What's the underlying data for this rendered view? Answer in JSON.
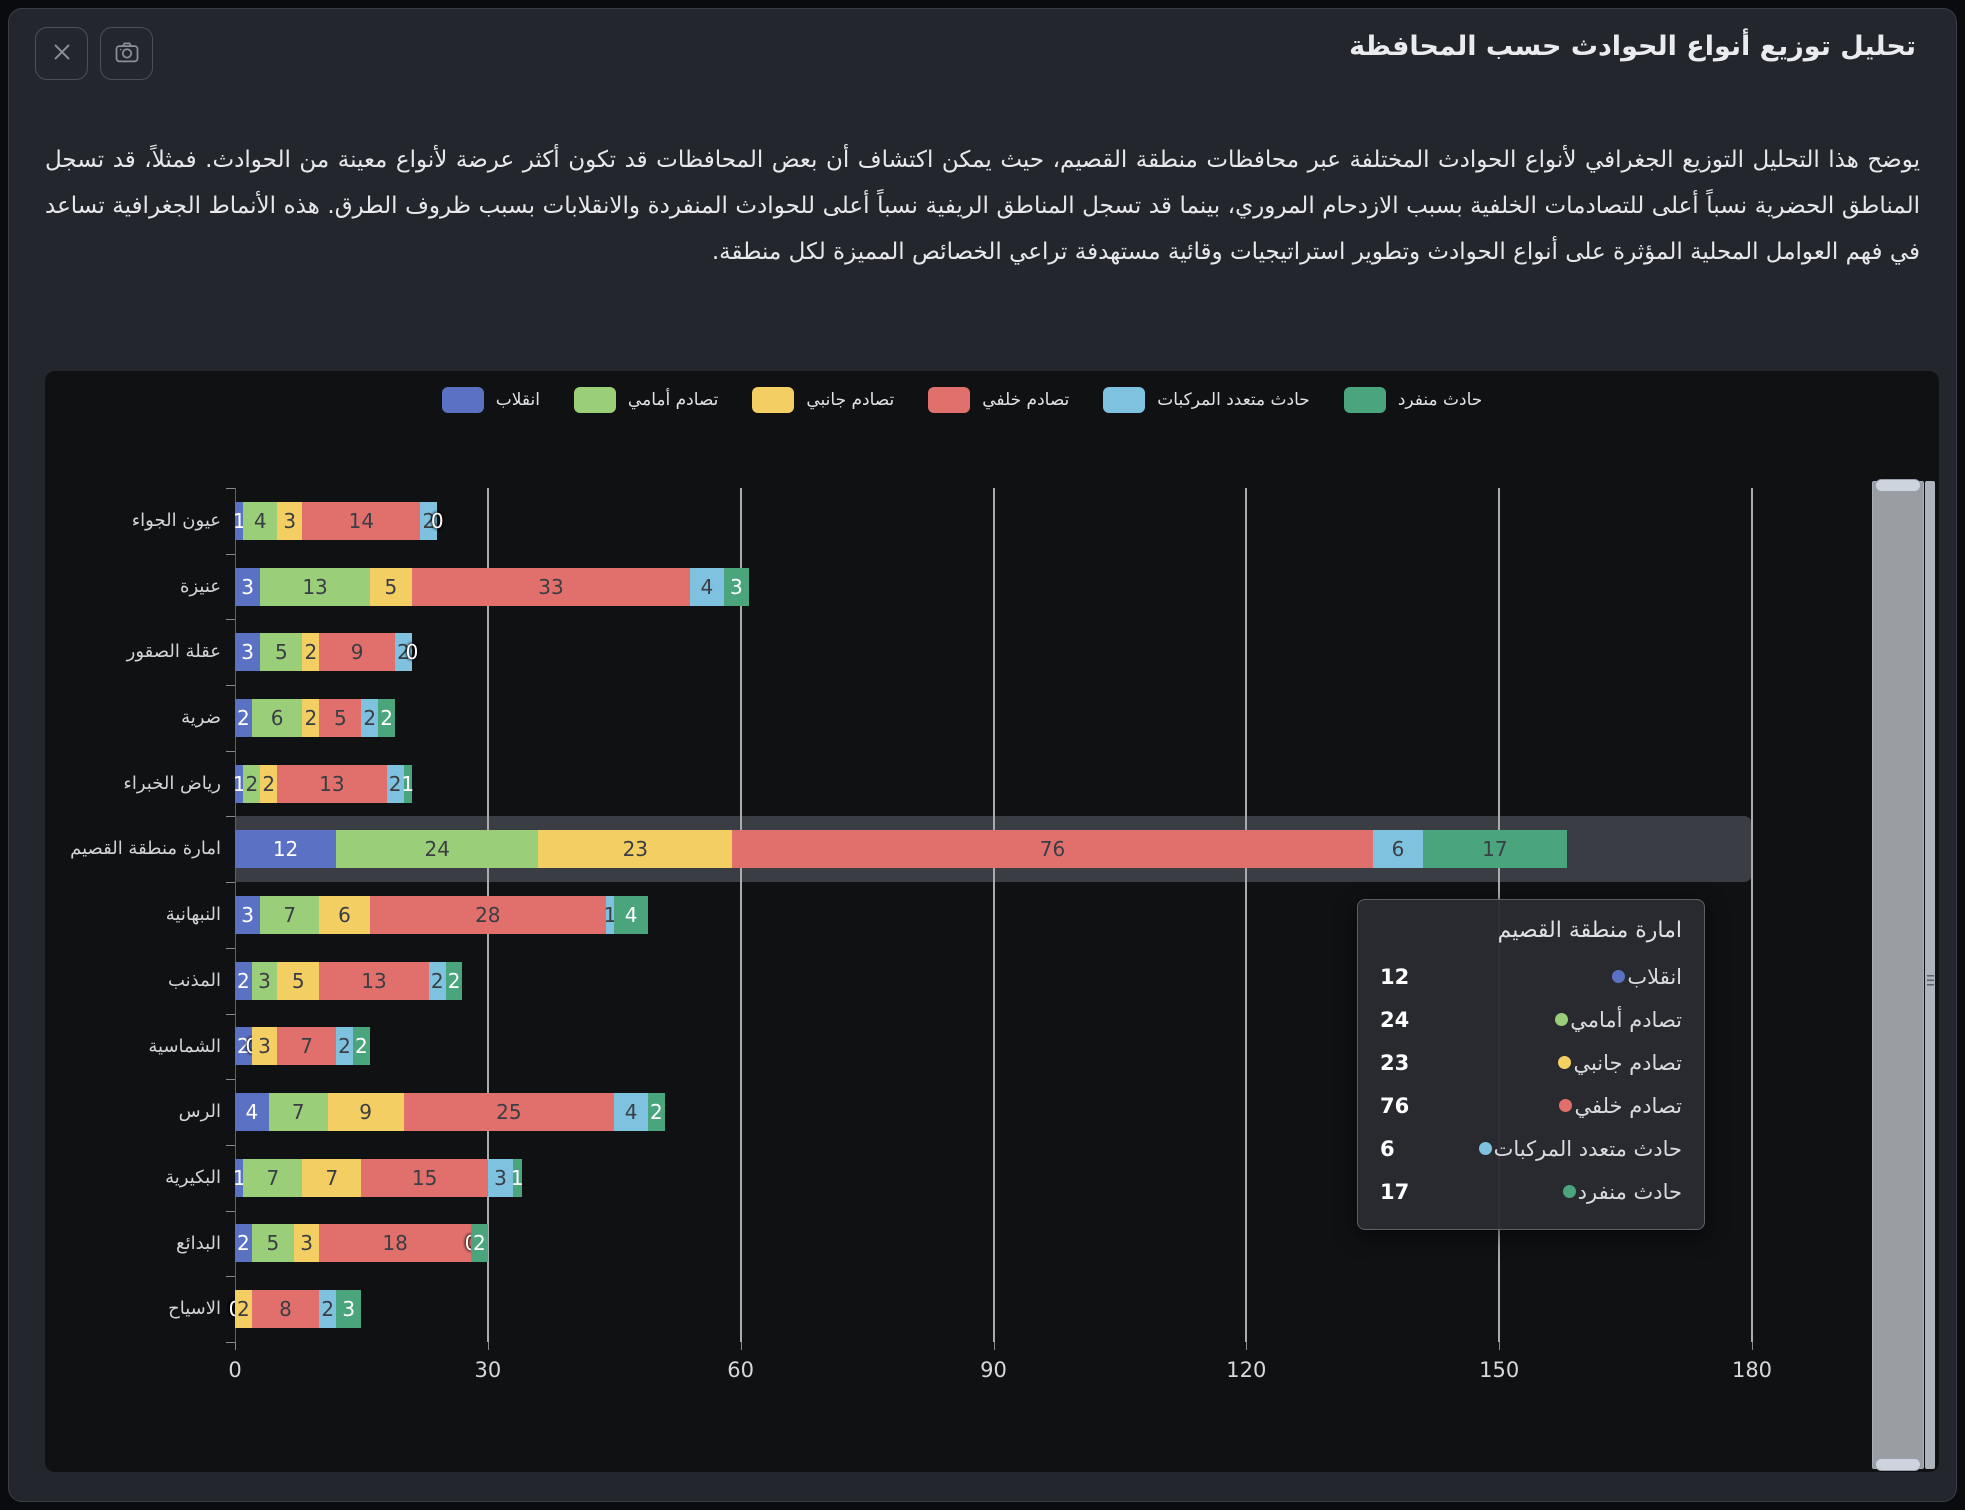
{
  "dialog": {
    "title": "تحليل توزيع أنواع الحوادث حسب المحافظة",
    "description": "يوضح هذا التحليل التوزيع الجغرافي لأنواع الحوادث المختلفة عبر محافظات منطقة القصيم، حيث يمكن اكتشاف أن بعض المحافظات قد تكون أكثر عرضة لأنواع معينة من الحوادث. فمثلاً، قد تسجل المناطق الحضرية نسباً أعلى للتصادمات الخلفية بسبب الازدحام المروري، بينما قد تسجل المناطق الريفية نسباً أعلى للحوادث المنفردة والانقلابات بسبب ظروف الطرق. هذه الأنماط الجغرافية تساعد في فهم العوامل المحلية المؤثرة على أنواع الحوادث وتطوير استراتيجيات وقائية مستهدفة تراعي الخصائص المميزة لكل منطقة.",
    "buttons": {
      "close": "close-x",
      "screenshot": "camera"
    }
  },
  "chart_data": {
    "type": "bar",
    "orientation": "horizontal",
    "stacked": true,
    "grid": true,
    "legend_position": "top",
    "xlabel": "",
    "ylabel": "",
    "xlim": [
      0,
      180
    ],
    "xticks": [
      0,
      30,
      60,
      90,
      120,
      150,
      180
    ],
    "categories": [
      "عيون الجواء",
      "عنيزة",
      "عقلة الصقور",
      "ضرية",
      "رياض الخبراء",
      "امارة منطقة القصيم",
      "النبهانية",
      "المذنب",
      "الشماسية",
      "الرس",
      "البكيرية",
      "البدائع",
      "الاسياح"
    ],
    "highlighted_category_index": 5,
    "series": [
      {
        "name": "انقلاب",
        "color": "#5b72c4",
        "label_color": "#ffffff",
        "values": [
          1,
          3,
          3,
          2,
          1,
          12,
          3,
          2,
          2,
          4,
          1,
          2,
          0
        ]
      },
      {
        "name": "تصادم أمامي",
        "color": "#9bce78",
        "label_color": "#3a3e44",
        "values": [
          4,
          13,
          5,
          6,
          2,
          24,
          7,
          3,
          0,
          7,
          7,
          5,
          0
        ]
      },
      {
        "name": "تصادم جانبي",
        "color": "#f3ce62",
        "label_color": "#3a3e44",
        "values": [
          3,
          5,
          2,
          2,
          2,
          23,
          6,
          5,
          3,
          9,
          7,
          3,
          2
        ]
      },
      {
        "name": "تصادم خلفي",
        "color": "#e1706c",
        "label_color": "#3a3e44",
        "values": [
          14,
          33,
          9,
          5,
          13,
          76,
          28,
          13,
          7,
          25,
          15,
          18,
          8
        ]
      },
      {
        "name": "حادث متعدد المركبات",
        "color": "#7fc2e0",
        "label_color": "#3a3e44",
        "values": [
          2,
          4,
          2,
          2,
          2,
          6,
          1,
          2,
          2,
          4,
          3,
          0,
          2
        ]
      },
      {
        "name": "حادث منفرد",
        "color": "#4aa57d",
        "label_color": "#ffffff",
        "label_color_highlighted": "#3a3e44",
        "values": [
          0,
          3,
          0,
          2,
          1,
          17,
          4,
          2,
          2,
          2,
          1,
          2,
          3
        ]
      }
    ]
  },
  "tooltip": {
    "title": "امارة منطقة القصيم",
    "items": [
      {
        "label": "انقلاب",
        "value": 12,
        "color": "#5b72c4"
      },
      {
        "label": "تصادم أمامي",
        "value": 24,
        "color": "#9bce78"
      },
      {
        "label": "تصادم جانبي",
        "value": 23,
        "color": "#f3ce62"
      },
      {
        "label": "تصادم خلفي",
        "value": 76,
        "color": "#e1706c"
      },
      {
        "label": "حادث متعدد المركبات",
        "value": 6,
        "color": "#7fc2e0"
      },
      {
        "label": "حادث منفرد",
        "value": 17,
        "color": "#4aa57d"
      }
    ]
  },
  "colors": {
    "page_bg": "#0a0b0e",
    "card_bg": "#23262d",
    "panel_bg": "#101113",
    "grid_line": "#a9abaf",
    "highlight_band": "#3a3d44"
  }
}
